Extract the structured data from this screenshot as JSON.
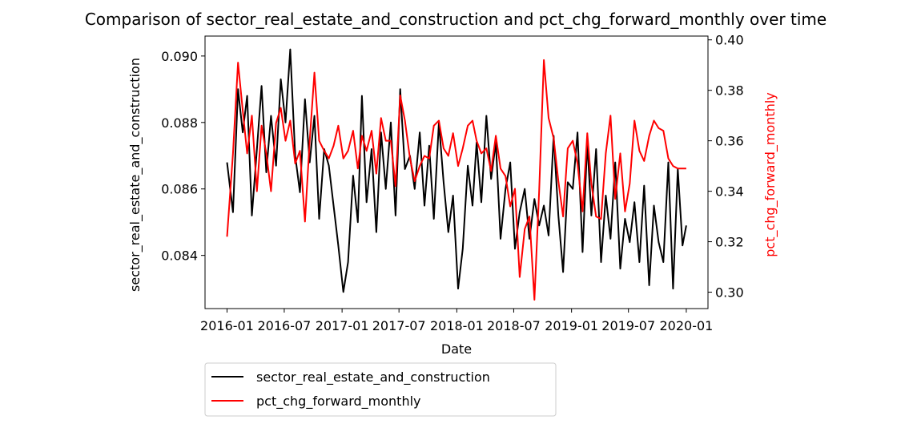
{
  "chart_data": {
    "type": "line",
    "title": "Comparison of sector_real_estate_and_construction and pct_chg_forward_monthly over time",
    "xlabel": "Date",
    "ylabel_left": "sector_real_estate_and_construction",
    "ylabel_right": "pct_chg_forward_monthly",
    "x_ticks": [
      "2016-01",
      "2016-07",
      "2017-01",
      "2017-07",
      "2018-01",
      "2018-07",
      "2019-01",
      "2019-07",
      "2020-01"
    ],
    "y_left_ticks": [
      "0.084",
      "0.086",
      "0.088",
      "0.090"
    ],
    "y_right_ticks": [
      "0.30",
      "0.32",
      "0.34",
      "0.36",
      "0.38",
      "0.40"
    ],
    "xlim": [
      "2015-10-23",
      "2020-03-10"
    ],
    "ylim_left": [
      0.0824,
      0.0906
    ],
    "ylim_right": [
      0.2935,
      0.4015
    ],
    "grid": false,
    "legend_placement": "below-left",
    "series": [
      {
        "name": "sector_real_estate_and_construction",
        "axis": "left",
        "color": "#000000",
        "x": [
          "2016-01-01",
          "2016-01-20",
          "2016-02-05",
          "2016-02-20",
          "2016-03-05",
          "2016-03-20",
          "2016-04-05",
          "2016-04-20",
          "2016-05-05",
          "2016-05-20",
          "2016-06-05",
          "2016-06-20",
          "2016-07-05",
          "2016-07-20",
          "2016-08-05",
          "2016-08-20",
          "2016-09-05",
          "2016-09-20",
          "2016-10-05",
          "2016-10-20",
          "2016-11-05",
          "2016-11-20",
          "2016-12-05",
          "2016-12-20",
          "2017-01-05",
          "2017-01-20",
          "2017-02-05",
          "2017-02-20",
          "2017-03-05",
          "2017-03-20",
          "2017-04-05",
          "2017-04-20",
          "2017-05-05",
          "2017-05-20",
          "2017-06-05",
          "2017-06-20",
          "2017-07-05",
          "2017-07-20",
          "2017-08-05",
          "2017-08-20",
          "2017-09-05",
          "2017-09-20",
          "2017-10-05",
          "2017-10-20",
          "2017-11-05",
          "2017-11-20",
          "2017-12-05",
          "2017-12-20",
          "2018-01-05",
          "2018-01-20",
          "2018-02-05",
          "2018-02-20",
          "2018-03-05",
          "2018-03-20",
          "2018-04-05",
          "2018-04-20",
          "2018-05-05",
          "2018-05-20",
          "2018-06-05",
          "2018-06-20",
          "2018-07-05",
          "2018-07-20",
          "2018-08-05",
          "2018-08-20",
          "2018-09-05",
          "2018-09-20",
          "2018-10-05",
          "2018-10-20",
          "2018-11-05",
          "2018-11-20",
          "2018-12-05",
          "2018-12-20",
          "2019-01-05",
          "2019-01-20",
          "2019-02-05",
          "2019-02-20",
          "2019-03-05",
          "2019-03-20",
          "2019-04-05",
          "2019-04-20",
          "2019-05-05",
          "2019-05-20",
          "2019-06-05",
          "2019-06-20",
          "2019-07-05",
          "2019-07-20",
          "2019-08-05",
          "2019-08-20",
          "2019-09-05",
          "2019-09-20",
          "2019-10-05",
          "2019-10-20",
          "2019-11-05",
          "2019-11-20",
          "2019-12-05",
          "2019-12-20",
          "2020-01-01"
        ],
        "y": [
          0.0868,
          0.0853,
          0.089,
          0.0877,
          0.0888,
          0.0852,
          0.0872,
          0.0891,
          0.0865,
          0.0882,
          0.0867,
          0.0893,
          0.088,
          0.0902,
          0.087,
          0.0859,
          0.0887,
          0.0868,
          0.0882,
          0.0851,
          0.0872,
          0.0867,
          0.0855,
          0.0843,
          0.0829,
          0.0838,
          0.0864,
          0.085,
          0.0888,
          0.0856,
          0.0872,
          0.0847,
          0.0877,
          0.086,
          0.088,
          0.0852,
          0.089,
          0.0866,
          0.087,
          0.086,
          0.0877,
          0.0855,
          0.0873,
          0.0851,
          0.088,
          0.0862,
          0.0847,
          0.0858,
          0.083,
          0.0842,
          0.0867,
          0.0855,
          0.0874,
          0.0856,
          0.0882,
          0.0863,
          0.0874,
          0.0845,
          0.086,
          0.0868,
          0.0842,
          0.0853,
          0.086,
          0.0845,
          0.0857,
          0.0849,
          0.0855,
          0.0846,
          0.0876,
          0.0852,
          0.0835,
          0.0862,
          0.086,
          0.0877,
          0.0841,
          0.0874,
          0.0852,
          0.0872,
          0.0838,
          0.0858,
          0.0845,
          0.0868,
          0.0836,
          0.0851,
          0.0844,
          0.0856,
          0.0838,
          0.0861,
          0.0831,
          0.0855,
          0.0844,
          0.0838,
          0.0868,
          0.083,
          0.0866,
          0.0843,
          0.0849
        ]
      },
      {
        "name": "pct_chg_forward_monthly",
        "axis": "right",
        "color": "#ff0000",
        "x": [
          "2016-01-01",
          "2016-01-20",
          "2016-02-05",
          "2016-02-20",
          "2016-03-05",
          "2016-03-20",
          "2016-04-05",
          "2016-04-20",
          "2016-05-05",
          "2016-05-20",
          "2016-06-05",
          "2016-06-20",
          "2016-07-05",
          "2016-07-20",
          "2016-08-05",
          "2016-08-20",
          "2016-09-05",
          "2016-09-20",
          "2016-10-05",
          "2016-10-20",
          "2016-11-05",
          "2016-11-20",
          "2016-12-05",
          "2016-12-20",
          "2017-01-05",
          "2017-01-20",
          "2017-02-05",
          "2017-02-20",
          "2017-03-05",
          "2017-03-20",
          "2017-04-05",
          "2017-04-20",
          "2017-05-05",
          "2017-05-20",
          "2017-06-05",
          "2017-06-20",
          "2017-07-05",
          "2017-07-20",
          "2017-08-05",
          "2017-08-20",
          "2017-09-05",
          "2017-09-20",
          "2017-10-05",
          "2017-10-20",
          "2017-11-05",
          "2017-11-20",
          "2017-12-05",
          "2017-12-20",
          "2018-01-05",
          "2018-01-20",
          "2018-02-05",
          "2018-02-20",
          "2018-03-05",
          "2018-03-20",
          "2018-04-05",
          "2018-04-20",
          "2018-05-05",
          "2018-05-20",
          "2018-06-05",
          "2018-06-20",
          "2018-07-05",
          "2018-07-20",
          "2018-08-05",
          "2018-08-20",
          "2018-09-05",
          "2018-09-20",
          "2018-10-05",
          "2018-10-20",
          "2018-11-05",
          "2018-11-20",
          "2018-12-05",
          "2018-12-20",
          "2019-01-05",
          "2019-01-20",
          "2019-02-05",
          "2019-02-20",
          "2019-03-05",
          "2019-03-20",
          "2019-04-05",
          "2019-04-20",
          "2019-05-05",
          "2019-05-20",
          "2019-06-05",
          "2019-06-20",
          "2019-07-05",
          "2019-07-20",
          "2019-08-05",
          "2019-08-20",
          "2019-09-05",
          "2019-09-20",
          "2019-10-05",
          "2019-10-20",
          "2019-11-05",
          "2019-11-20",
          "2019-12-05",
          "2019-12-20",
          "2020-01-01"
        ],
        "y": [
          0.322,
          0.355,
          0.391,
          0.372,
          0.355,
          0.37,
          0.34,
          0.366,
          0.355,
          0.34,
          0.367,
          0.373,
          0.36,
          0.368,
          0.351,
          0.356,
          0.328,
          0.36,
          0.387,
          0.36,
          0.356,
          0.353,
          0.358,
          0.366,
          0.353,
          0.356,
          0.364,
          0.349,
          0.362,
          0.356,
          0.364,
          0.347,
          0.369,
          0.36,
          0.36,
          0.342,
          0.378,
          0.368,
          0.353,
          0.344,
          0.35,
          0.354,
          0.353,
          0.366,
          0.368,
          0.357,
          0.354,
          0.363,
          0.35,
          0.357,
          0.366,
          0.368,
          0.36,
          0.355,
          0.357,
          0.348,
          0.362,
          0.349,
          0.346,
          0.334,
          0.341,
          0.306,
          0.325,
          0.33,
          0.297,
          0.34,
          0.392,
          0.369,
          0.361,
          0.344,
          0.33,
          0.357,
          0.36,
          0.351,
          0.332,
          0.363,
          0.343,
          0.33,
          0.329,
          0.355,
          0.37,
          0.337,
          0.355,
          0.332,
          0.343,
          0.368,
          0.356,
          0.352,
          0.362,
          0.368,
          0.365,
          0.364,
          0.353,
          0.35,
          0.349,
          0.349,
          0.349
        ]
      }
    ]
  }
}
